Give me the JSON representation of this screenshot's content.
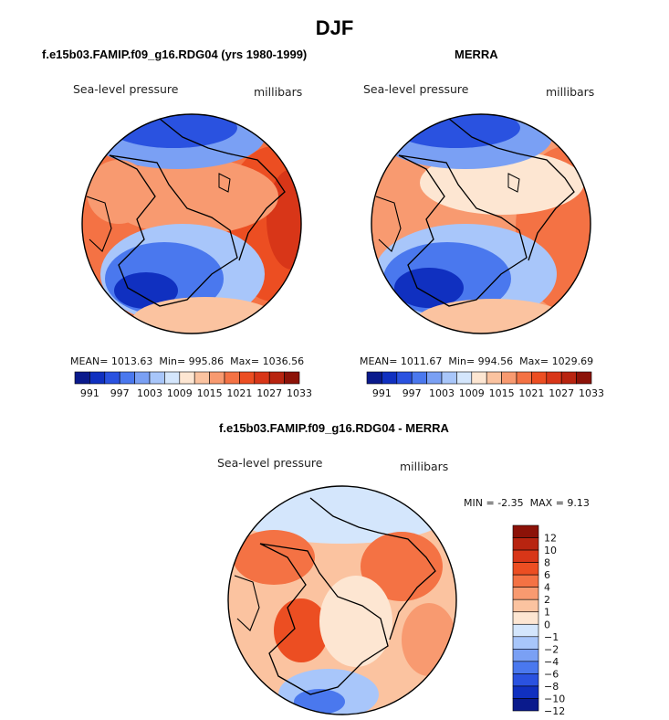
{
  "figure": {
    "title": "DJF",
    "panels": [
      {
        "title": "f.e15b03.FAMIP.f09_g16.RDG04 (yrs 1980-1999)",
        "field": "Sea-level pressure",
        "units": "millibars",
        "stats": {
          "mean_label": "MEAN=",
          "mean": "1013.63",
          "min_label": "Min=",
          "min": "995.86",
          "max_label": "Max=",
          "max": "1036.56"
        }
      },
      {
        "title": "MERRA",
        "field": "Sea-level pressure",
        "units": "millibars",
        "stats": {
          "mean_label": "MEAN=",
          "mean": "1011.67",
          "min_label": "Min=",
          "min": "994.56",
          "max_label": "Max=",
          "max": "1029.69"
        }
      },
      {
        "title": "f.e15b03.FAMIP.f09_g16.RDG04 - MERRA",
        "field": "Sea-level pressure",
        "units": "millibars",
        "stats": {
          "min_label": "MIN =",
          "min": "-2.35",
          "max_label": "MAX =",
          "max": "9.13"
        }
      }
    ]
  },
  "chart_data": [
    {
      "type": "heatmap",
      "projection": "north-polar-stereographic",
      "variable": "Sea-level pressure",
      "units": "millibars",
      "title": "f.e15b03.FAMIP.f09_g16.RDG04 (yrs 1980-1999)",
      "mean": 1013.63,
      "min": 995.86,
      "max": 1036.56,
      "colorbar_orientation": "horizontal",
      "colorbar_labels": [
        "991",
        "997",
        "1003",
        "1009",
        "1015",
        "1021",
        "1027",
        "1033"
      ]
    },
    {
      "type": "heatmap",
      "projection": "north-polar-stereographic",
      "variable": "Sea-level pressure",
      "units": "millibars",
      "title": "MERRA",
      "mean": 1011.67,
      "min": 994.56,
      "max": 1029.69,
      "colorbar_orientation": "horizontal",
      "colorbar_labels": [
        "991",
        "997",
        "1003",
        "1009",
        "1015",
        "1021",
        "1027",
        "1033"
      ]
    },
    {
      "type": "heatmap",
      "projection": "north-polar-stereographic",
      "variable": "Sea-level pressure",
      "units": "millibars",
      "title": "f.e15b03.FAMIP.f09_g16.RDG04 - MERRA",
      "min": -2.35,
      "max": 9.13,
      "colorbar_orientation": "vertical",
      "colorbar_labels": [
        "12",
        "10",
        "8",
        "6",
        "4",
        "2",
        "1",
        "0",
        "−1",
        "−2",
        "−4",
        "−6",
        "−8",
        "−10",
        "−12"
      ]
    }
  ],
  "colorscale": [
    "#0a1a8c",
    "#1030c0",
    "#2a52e0",
    "#4a78ee",
    "#7aa0f4",
    "#a8c6fa",
    "#d4e6fc",
    "#fde6d2",
    "#fbc3a0",
    "#f89a70",
    "#f47244",
    "#ec4e22",
    "#d83618",
    "#b82410",
    "#8c1208"
  ],
  "diff_colorscale": [
    "#0a1a8c",
    "#1030c0",
    "#2a52e0",
    "#4a78ee",
    "#7aa0f4",
    "#a8c6fa",
    "#d4e6fc",
    "#fde6d2",
    "#fbc3a0",
    "#f89a70",
    "#f47244",
    "#ec4e22",
    "#d83618",
    "#b82410",
    "#8c1208"
  ]
}
